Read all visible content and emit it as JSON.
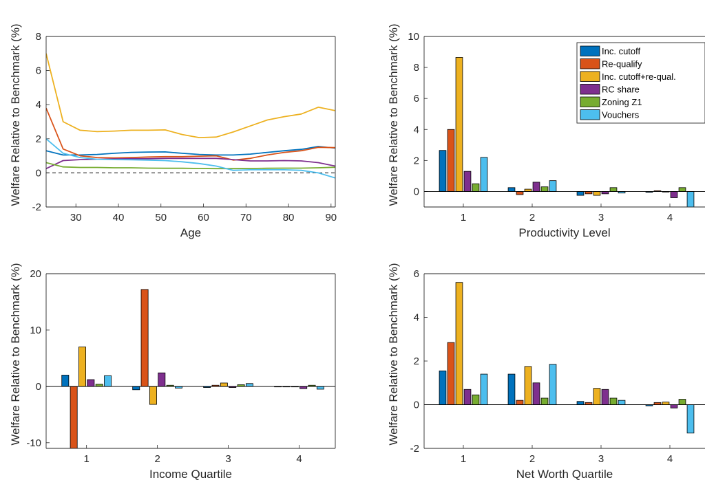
{
  "colors": {
    "blue": "#0072BD",
    "orange": "#D95319",
    "yellow": "#EDB120",
    "purple": "#7E2F8E",
    "green": "#77AC30",
    "cyan": "#4DBEEE"
  },
  "chart_data": [
    {
      "type": "line",
      "xlabel": "Age",
      "ylabel": "Welfare Relative to Benchmark (%)",
      "xlim": [
        23,
        91
      ],
      "ylim": [
        -2,
        8
      ],
      "xticks": [
        30,
        40,
        50,
        60,
        70,
        80,
        90
      ],
      "yticks": [
        -2,
        0,
        2,
        4,
        6,
        8
      ],
      "reference_line": 0,
      "x": [
        23,
        27,
        31,
        35,
        39,
        43,
        47,
        51,
        55,
        59,
        63,
        67,
        71,
        75,
        79,
        83,
        87,
        91
      ],
      "series": [
        {
          "color": "blue",
          "values": [
            1.3,
            1.05,
            1.05,
            1.08,
            1.15,
            1.2,
            1.22,
            1.23,
            1.15,
            1.08,
            1.05,
            1.05,
            1.1,
            1.2,
            1.3,
            1.38,
            1.55,
            1.45
          ]
        },
        {
          "color": "orange",
          "values": [
            3.8,
            1.4,
            1.0,
            0.9,
            0.88,
            0.9,
            0.93,
            0.95,
            0.95,
            0.98,
            1.0,
            0.75,
            0.85,
            1.05,
            1.2,
            1.3,
            1.5,
            1.48
          ]
        },
        {
          "color": "yellow",
          "values": [
            7.0,
            3.0,
            2.5,
            2.42,
            2.45,
            2.5,
            2.5,
            2.52,
            2.25,
            2.07,
            2.1,
            2.4,
            2.75,
            3.1,
            3.3,
            3.45,
            3.85,
            3.65
          ]
        },
        {
          "color": "purple",
          "values": [
            0.25,
            0.72,
            0.78,
            0.8,
            0.82,
            0.83,
            0.83,
            0.85,
            0.85,
            0.85,
            0.85,
            0.78,
            0.7,
            0.7,
            0.72,
            0.7,
            0.6,
            0.4
          ]
        },
        {
          "color": "green",
          "values": [
            0.6,
            0.35,
            0.32,
            0.32,
            0.3,
            0.3,
            0.28,
            0.27,
            0.27,
            0.26,
            0.25,
            0.25,
            0.26,
            0.27,
            0.28,
            0.28,
            0.3,
            0.33
          ]
        },
        {
          "color": "cyan",
          "values": [
            2.0,
            1.15,
            0.9,
            0.8,
            0.78,
            0.77,
            0.75,
            0.72,
            0.65,
            0.55,
            0.4,
            0.15,
            0.18,
            0.18,
            0.18,
            0.15,
            0.0,
            -0.3
          ]
        }
      ]
    },
    {
      "type": "bar",
      "xlabel": "Productivity Level",
      "ylabel": "Welfare Relative to Benchmark (%)",
      "ylim": [
        -1,
        10
      ],
      "yticks": [
        0,
        2,
        4,
        6,
        8,
        10
      ],
      "categories": [
        "1",
        "2",
        "3",
        "4"
      ],
      "legend_position": "top-right",
      "series": [
        {
          "name": "Inc. cutoff",
          "color": "blue",
          "values": [
            2.65,
            0.25,
            -0.25,
            -0.05
          ]
        },
        {
          "name": "Re-qualify",
          "color": "orange",
          "values": [
            4.0,
            -0.2,
            -0.15,
            0.05
          ]
        },
        {
          "name": "Inc. cutoff+re-qual.",
          "color": "yellow",
          "values": [
            8.65,
            0.15,
            -0.25,
            0.0
          ]
        },
        {
          "name": "RC share",
          "color": "purple",
          "values": [
            1.3,
            0.6,
            -0.15,
            -0.4
          ]
        },
        {
          "name": "Zoning Z1",
          "color": "green",
          "values": [
            0.5,
            0.3,
            0.25,
            0.25
          ]
        },
        {
          "name": "Vouchers",
          "color": "cyan",
          "values": [
            2.2,
            0.7,
            -0.1,
            -1.0
          ]
        }
      ]
    },
    {
      "type": "bar",
      "xlabel": "Income Quartile",
      "ylabel": "Welfare Relative to Benchmark (%)",
      "ylim": [
        -11,
        20
      ],
      "yticks": [
        -10,
        0,
        10,
        20
      ],
      "categories": [
        "1",
        "2",
        "3",
        "4"
      ],
      "series": [
        {
          "color": "blue",
          "values": [
            2.0,
            -0.6,
            -0.2,
            -0.1
          ]
        },
        {
          "color": "orange",
          "values": [
            -11.0,
            17.2,
            0.2,
            -0.1
          ]
        },
        {
          "color": "yellow",
          "values": [
            7.0,
            -3.2,
            0.6,
            -0.1
          ]
        },
        {
          "color": "purple",
          "values": [
            1.2,
            2.4,
            -0.2,
            -0.4
          ]
        },
        {
          "color": "green",
          "values": [
            0.4,
            0.2,
            0.3,
            0.2
          ]
        },
        {
          "color": "cyan",
          "values": [
            1.9,
            -0.3,
            0.5,
            -0.5
          ]
        }
      ]
    },
    {
      "type": "bar",
      "xlabel": "Net Worth Quartile",
      "ylabel": "Welfare Relative to Benchmark (%)",
      "ylim": [
        -2,
        6
      ],
      "yticks": [
        -2,
        0,
        2,
        4,
        6
      ],
      "categories": [
        "1",
        "2",
        "3",
        "4"
      ],
      "series": [
        {
          "color": "blue",
          "values": [
            1.55,
            1.4,
            0.15,
            -0.05
          ]
        },
        {
          "color": "orange",
          "values": [
            2.85,
            0.2,
            0.1,
            0.1
          ]
        },
        {
          "color": "yellow",
          "values": [
            5.6,
            1.75,
            0.75,
            0.12
          ]
        },
        {
          "color": "purple",
          "values": [
            0.7,
            1.0,
            0.7,
            -0.15
          ]
        },
        {
          "color": "green",
          "values": [
            0.45,
            0.3,
            0.3,
            0.25
          ]
        },
        {
          "color": "cyan",
          "values": [
            1.4,
            1.85,
            0.2,
            -1.3
          ]
        }
      ]
    }
  ]
}
